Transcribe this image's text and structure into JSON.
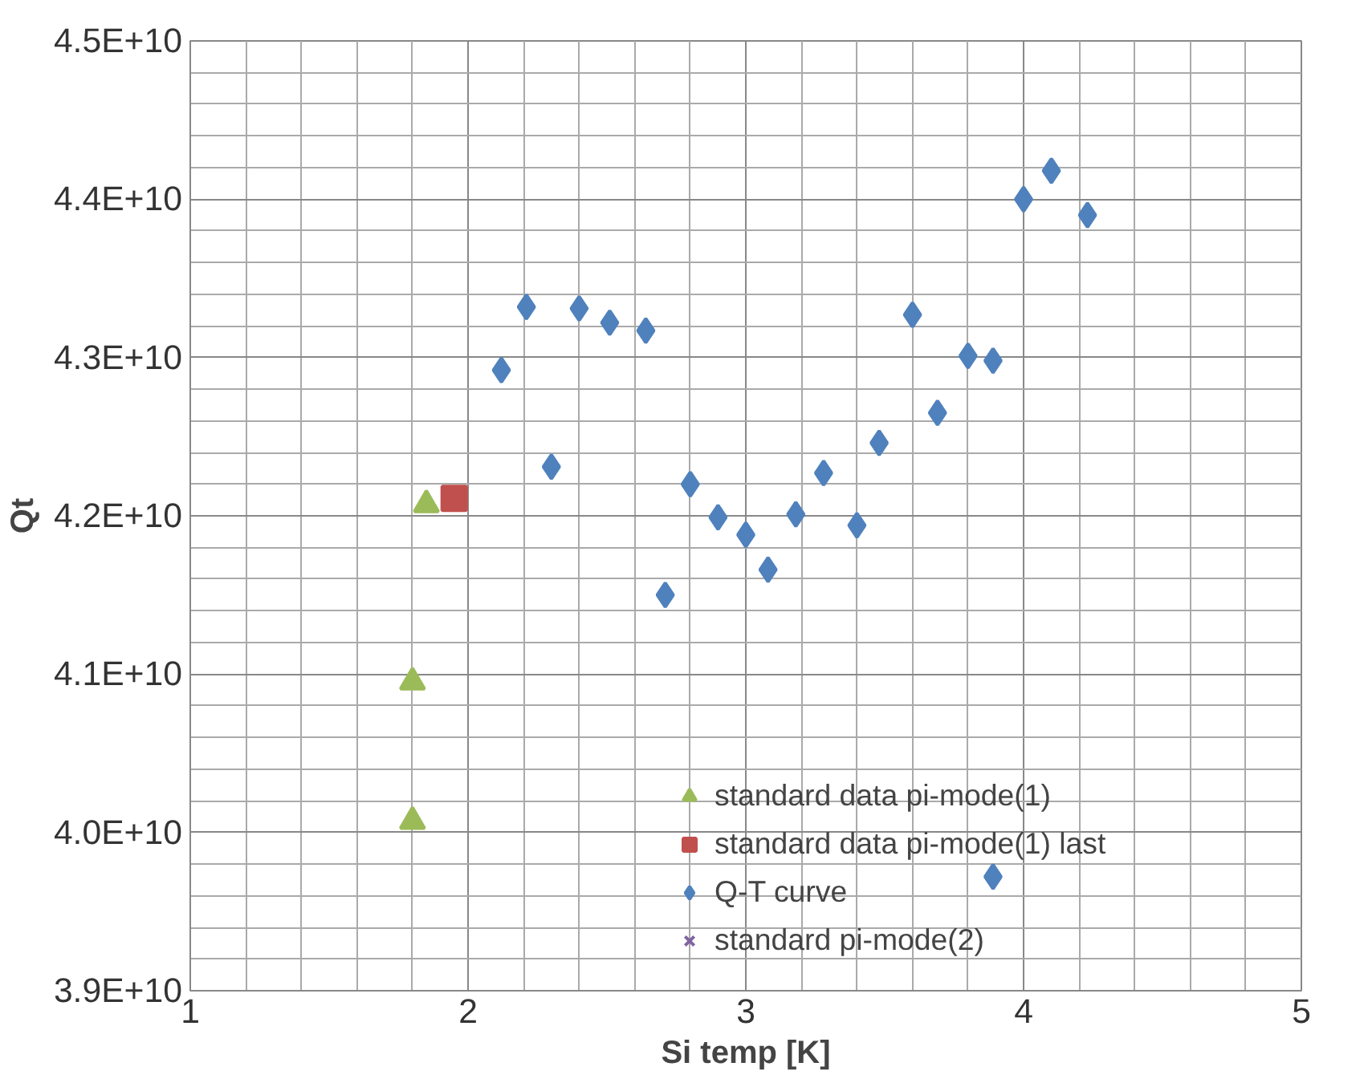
{
  "chart_data": {
    "type": "scatter",
    "xlabel": "Si temp [K]",
    "ylabel": "Qt",
    "xlim": [
      1,
      5
    ],
    "xticks": [
      1,
      2,
      3,
      4,
      5
    ],
    "ylim": [
      39000000000.0,
      45000000000.0
    ],
    "yticks": [
      {
        "value": 39000000000.0,
        "label": "3.9E+10"
      },
      {
        "value": 40000000000.0,
        "label": "4.0E+10"
      },
      {
        "value": 41000000000.0,
        "label": "4.1E+10"
      },
      {
        "value": 42000000000.0,
        "label": "4.2E+10"
      },
      {
        "value": 43000000000.0,
        "label": "4.3E+10"
      },
      {
        "value": 44000000000.0,
        "label": "4.4E+10"
      },
      {
        "value": 45000000000.0,
        "label": "4.5E+10"
      }
    ],
    "grid": true,
    "legend": "bottom right",
    "series": [
      {
        "name": "standard data pi-mode(1)",
        "color": "#9bbb59",
        "marker": "triangle",
        "x": [
          1.8,
          1.8,
          1.85
        ],
        "values": [
          40070000000.0,
          40950000000.0,
          42070000000.0
        ]
      },
      {
        "name": "standard data pi-mode(1) last",
        "color": "#c0504d",
        "marker": "square",
        "x": [
          1.95
        ],
        "values": [
          42110000000.0
        ]
      },
      {
        "name": "Q-T curve",
        "color": "#4f81bd",
        "marker": "diamond",
        "x": [
          2.12,
          2.21,
          2.3,
          2.4,
          2.51,
          2.64,
          2.71,
          2.8,
          2.9,
          3.0,
          3.08,
          3.18,
          3.28,
          3.4,
          3.48,
          3.6,
          3.69,
          3.8,
          3.89,
          3.89,
          4.0,
          4.1,
          4.23
        ],
        "values": [
          42920000000.0,
          43320000000.0,
          42310000000.0,
          43310000000.0,
          43220000000.0,
          43170000000.0,
          41500000000.0,
          42200000000.0,
          41990000000.0,
          41880000000.0,
          41660000000.0,
          42010000000.0,
          42270000000.0,
          41940000000.0,
          42460000000.0,
          43270000000.0,
          42650000000.0,
          43010000000.0,
          42980000000.0,
          39720000000.0,
          44000000000.0,
          44180000000.0,
          43900000000.0
        ]
      },
      {
        "name": "standard pi-mode(2)",
        "color": "#8064a2",
        "marker": "cross"
      }
    ]
  }
}
